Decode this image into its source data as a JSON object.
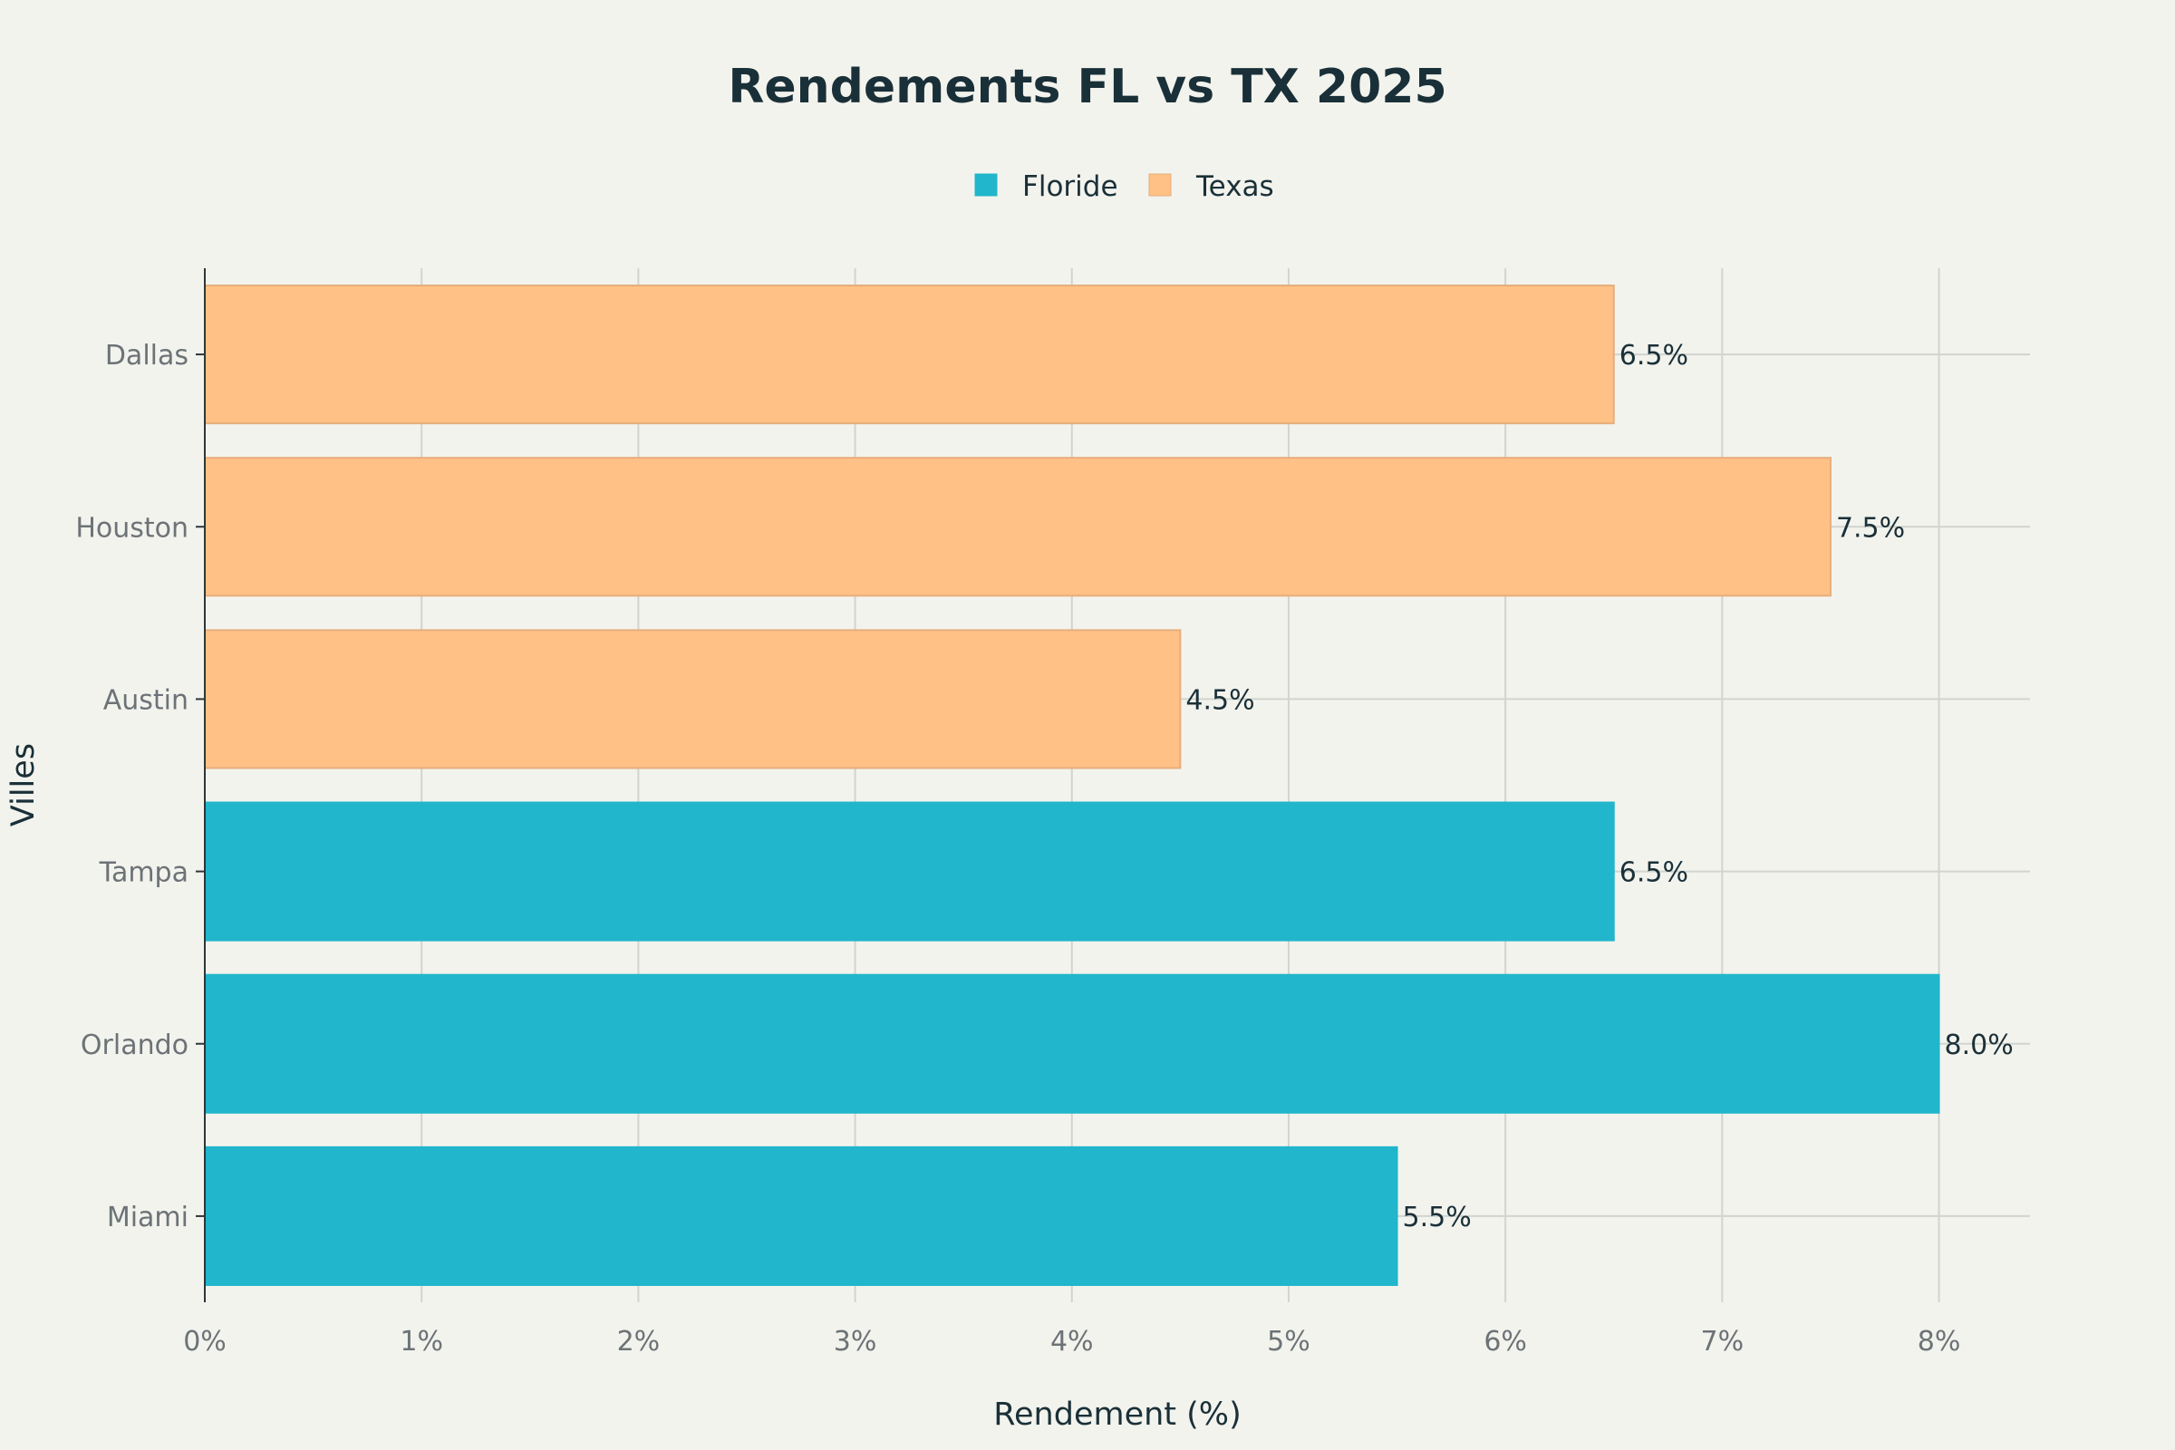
{
  "chart_data": {
    "type": "bar",
    "orientation": "horizontal",
    "title": "Rendements FL vs TX 2025",
    "xlabel": "Rendement (%)",
    "ylabel": "Villes",
    "categories": [
      "Miami",
      "Orlando",
      "Tampa",
      "Austin",
      "Houston",
      "Dallas"
    ],
    "series": [
      {
        "name": "Floride",
        "color": "#21b6cb",
        "points": [
          {
            "category": "Miami",
            "value": 5.5,
            "label": "5.5%"
          },
          {
            "category": "Orlando",
            "value": 8.0,
            "label": "8.0%"
          },
          {
            "category": "Tampa",
            "value": 6.5,
            "label": "6.5%"
          }
        ]
      },
      {
        "name": "Texas",
        "color": "#ffc185",
        "points": [
          {
            "category": "Austin",
            "value": 4.5,
            "label": "4.5%"
          },
          {
            "category": "Houston",
            "value": 7.5,
            "label": "7.5%"
          },
          {
            "category": "Dallas",
            "value": 6.5,
            "label": "6.5%"
          }
        ]
      }
    ],
    "xlim": [
      0,
      8.42
    ],
    "xticks": [
      0,
      1,
      2,
      3,
      4,
      5,
      6,
      7,
      8
    ],
    "xtick_labels": [
      "0%",
      "1%",
      "2%",
      "3%",
      "4%",
      "5%",
      "6%",
      "7%",
      "8%"
    ],
    "grid": true,
    "legend_position": "top-center"
  }
}
